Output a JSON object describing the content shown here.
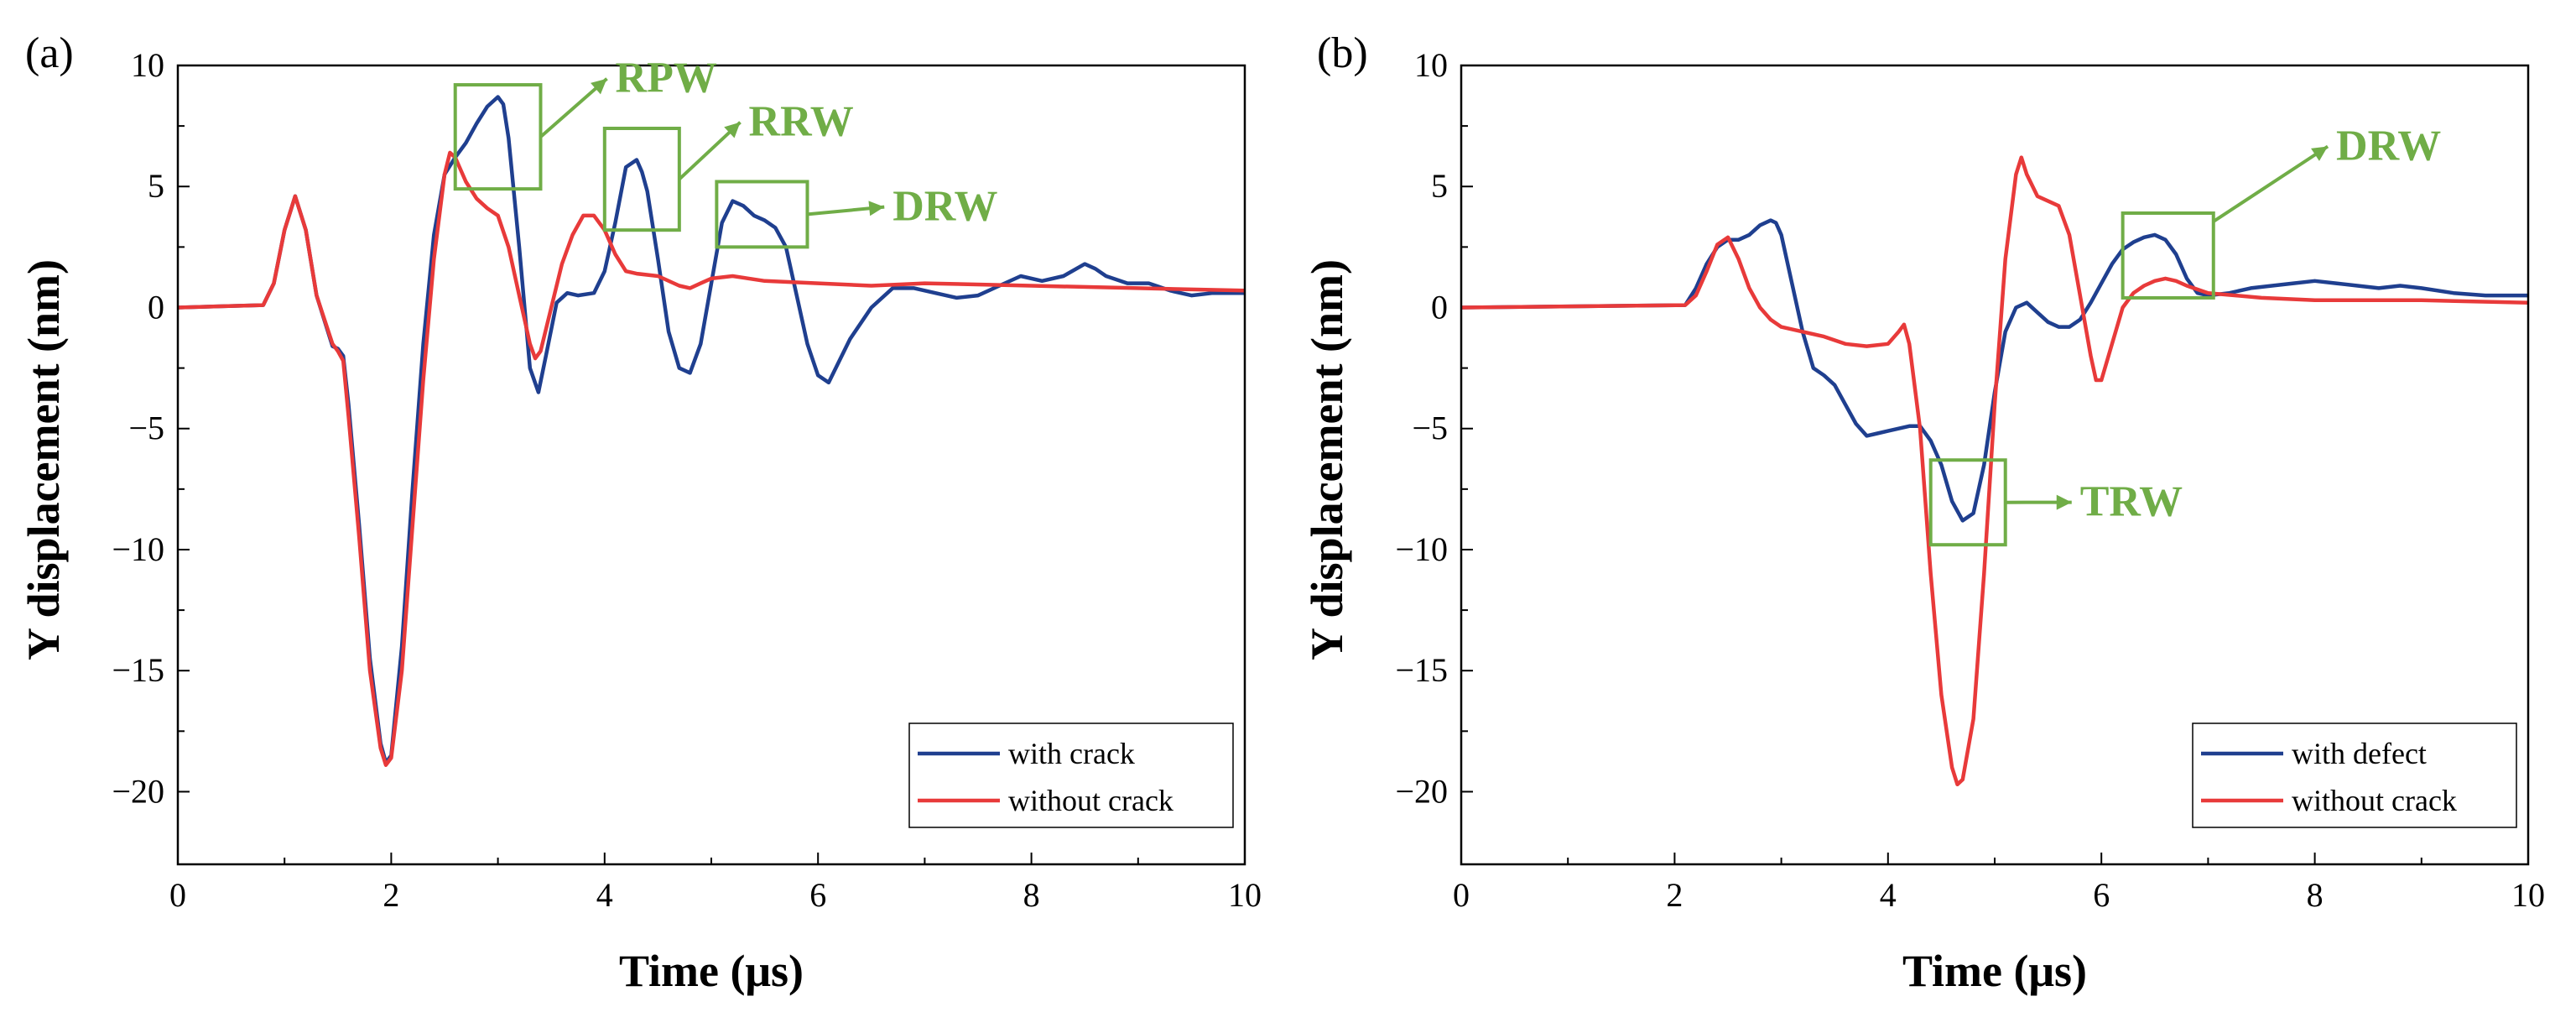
{
  "chart_data": [
    {
      "type": "line",
      "panel_label": "(a)",
      "xlabel": "Time (μs)",
      "ylabel": "Y displacement (nm)",
      "xlim": [
        0,
        10
      ],
      "ylim": [
        -23,
        10
      ],
      "xticks": [
        0,
        2,
        4,
        6,
        8,
        10
      ],
      "yticks": [
        10,
        5,
        0,
        -5,
        -10,
        -15,
        -20
      ],
      "legend_position": "bottom-right",
      "series": [
        {
          "name": "with crack",
          "color": "#1f3f8f",
          "x": [
            0,
            0.8,
            0.9,
            1.0,
            1.1,
            1.2,
            1.3,
            1.45,
            1.5,
            1.55,
            1.6,
            1.7,
            1.8,
            1.9,
            1.95,
            2.0,
            2.1,
            2.2,
            2.3,
            2.4,
            2.5,
            2.6,
            2.7,
            2.8,
            2.9,
            3.0,
            3.05,
            3.1,
            3.2,
            3.3,
            3.38,
            3.45,
            3.55,
            3.65,
            3.75,
            3.9,
            4.0,
            4.1,
            4.2,
            4.3,
            4.35,
            4.4,
            4.5,
            4.6,
            4.7,
            4.8,
            4.9,
            5.0,
            5.1,
            5.2,
            5.3,
            5.4,
            5.5,
            5.6,
            5.7,
            5.8,
            5.9,
            6.0,
            6.1,
            6.2,
            6.3,
            6.5,
            6.7,
            6.9,
            7.1,
            7.3,
            7.5,
            7.7,
            7.9,
            8.1,
            8.3,
            8.5,
            8.6,
            8.7,
            8.9,
            9.1,
            9.3,
            9.5,
            9.7,
            10.0
          ],
          "y": [
            0,
            0.1,
            1.0,
            3.2,
            4.6,
            3.2,
            0.5,
            -1.6,
            -1.7,
            -2.0,
            -4.0,
            -9.0,
            -14.5,
            -18.0,
            -18.8,
            -18.5,
            -14.0,
            -7.5,
            -1.5,
            3.0,
            5.5,
            6.2,
            6.8,
            7.6,
            8.3,
            8.7,
            8.4,
            7.0,
            2.5,
            -2.5,
            -3.5,
            -2.0,
            0.2,
            0.6,
            0.5,
            0.6,
            1.5,
            3.5,
            5.8,
            6.1,
            5.6,
            4.8,
            2.0,
            -1.0,
            -2.5,
            -2.7,
            -1.5,
            1.0,
            3.5,
            4.4,
            4.2,
            3.8,
            3.6,
            3.3,
            2.5,
            0.5,
            -1.5,
            -2.8,
            -3.1,
            -2.2,
            -1.3,
            0.0,
            0.8,
            0.8,
            0.6,
            0.4,
            0.5,
            0.9,
            1.3,
            1.1,
            1.3,
            1.8,
            1.6,
            1.3,
            1.0,
            1.0,
            0.7,
            0.5,
            0.6,
            0.6
          ]
        },
        {
          "name": "without crack",
          "color": "#e83a3a",
          "x": [
            0,
            0.8,
            0.9,
            1.0,
            1.1,
            1.2,
            1.3,
            1.45,
            1.5,
            1.55,
            1.6,
            1.7,
            1.8,
            1.9,
            1.95,
            2.0,
            2.1,
            2.2,
            2.3,
            2.4,
            2.5,
            2.55,
            2.6,
            2.7,
            2.8,
            2.9,
            3.0,
            3.1,
            3.2,
            3.3,
            3.35,
            3.4,
            3.5,
            3.6,
            3.7,
            3.8,
            3.9,
            4.0,
            4.1,
            4.2,
            4.3,
            4.5,
            4.7,
            4.8,
            4.9,
            5.0,
            5.2,
            5.5,
            6.0,
            6.5,
            7.0,
            8.0,
            9.0,
            10.0
          ],
          "y": [
            0,
            0.1,
            1.0,
            3.2,
            4.6,
            3.2,
            0.5,
            -1.5,
            -1.8,
            -2.2,
            -4.5,
            -9.5,
            -15.0,
            -18.2,
            -18.9,
            -18.6,
            -15.0,
            -9.0,
            -3.0,
            2.0,
            5.5,
            6.4,
            6.2,
            5.2,
            4.5,
            4.1,
            3.8,
            2.5,
            0.5,
            -1.5,
            -2.1,
            -1.8,
            0.0,
            1.8,
            3.0,
            3.8,
            3.8,
            3.2,
            2.2,
            1.5,
            1.4,
            1.3,
            0.9,
            0.8,
            1.0,
            1.2,
            1.3,
            1.1,
            1.0,
            0.9,
            1.0,
            0.9,
            0.8,
            0.7
          ]
        }
      ],
      "annotations": [
        {
          "label": "RPW",
          "box": [
            2.6,
            3.4,
            4.9,
            9.2
          ],
          "text_at": [
            4.1,
            8.9
          ]
        },
        {
          "label": "RRW",
          "box": [
            4.0,
            4.7,
            3.2,
            7.4
          ],
          "text_at": [
            5.35,
            7.1
          ]
        },
        {
          "label": "DRW",
          "box": [
            5.05,
            5.9,
            2.5,
            5.2
          ],
          "text_at": [
            6.7,
            3.6
          ]
        }
      ]
    },
    {
      "type": "line",
      "panel_label": "(b)",
      "xlabel": "Time (μs)",
      "ylabel": "Y displacement (nm)",
      "xlim": [
        0,
        10
      ],
      "ylim": [
        -23,
        10
      ],
      "xticks": [
        0,
        2,
        4,
        6,
        8,
        10
      ],
      "yticks": [
        10,
        5,
        0,
        -5,
        -10,
        -15,
        -20
      ],
      "legend_position": "bottom-right",
      "series": [
        {
          "name": "with defect",
          "color": "#1f3f8f",
          "x": [
            0,
            2.1,
            2.2,
            2.3,
            2.4,
            2.5,
            2.6,
            2.7,
            2.8,
            2.9,
            2.95,
            3.0,
            3.1,
            3.2,
            3.3,
            3.4,
            3.5,
            3.6,
            3.7,
            3.8,
            3.9,
            4.0,
            4.1,
            4.2,
            4.3,
            4.4,
            4.5,
            4.6,
            4.7,
            4.8,
            4.9,
            5.0,
            5.1,
            5.2,
            5.3,
            5.4,
            5.5,
            5.6,
            5.7,
            5.8,
            5.9,
            6.0,
            6.1,
            6.2,
            6.3,
            6.4,
            6.5,
            6.6,
            6.7,
            6.8,
            6.9,
            7.0,
            7.2,
            7.4,
            7.6,
            7.8,
            8.0,
            8.2,
            8.4,
            8.6,
            8.8,
            9.0,
            9.3,
            9.6,
            10.0
          ],
          "y": [
            0,
            0.1,
            0.8,
            1.8,
            2.5,
            2.8,
            2.8,
            3.0,
            3.4,
            3.6,
            3.5,
            3.0,
            1.0,
            -1.0,
            -2.5,
            -2.8,
            -3.2,
            -4.0,
            -4.8,
            -5.3,
            -5.2,
            -5.1,
            -5.0,
            -4.9,
            -4.9,
            -5.5,
            -6.5,
            -8.0,
            -8.8,
            -8.5,
            -6.5,
            -3.5,
            -1.0,
            0.0,
            0.2,
            -0.2,
            -0.6,
            -0.8,
            -0.8,
            -0.5,
            0.2,
            1.0,
            1.8,
            2.4,
            2.7,
            2.9,
            3.0,
            2.8,
            2.2,
            1.2,
            0.6,
            0.5,
            0.6,
            0.8,
            0.9,
            1.0,
            1.1,
            1.0,
            0.9,
            0.8,
            0.9,
            0.8,
            0.6,
            0.5,
            0.5
          ]
        },
        {
          "name": "without crack",
          "color": "#e83a3a",
          "x": [
            0,
            2.1,
            2.2,
            2.3,
            2.4,
            2.5,
            2.6,
            2.7,
            2.8,
            2.9,
            3.0,
            3.2,
            3.4,
            3.6,
            3.8,
            4.0,
            4.1,
            4.15,
            4.2,
            4.3,
            4.4,
            4.5,
            4.6,
            4.65,
            4.7,
            4.8,
            4.9,
            5.0,
            5.1,
            5.2,
            5.25,
            5.3,
            5.4,
            5.5,
            5.6,
            5.7,
            5.8,
            5.9,
            5.95,
            6.0,
            6.1,
            6.2,
            6.3,
            6.4,
            6.5,
            6.6,
            6.7,
            6.8,
            7.0,
            7.5,
            8.0,
            9.0,
            10.0
          ],
          "y": [
            0,
            0.1,
            0.5,
            1.5,
            2.6,
            2.9,
            2.0,
            0.8,
            0.0,
            -0.5,
            -0.8,
            -1.0,
            -1.2,
            -1.5,
            -1.6,
            -1.5,
            -1.0,
            -0.7,
            -1.5,
            -5.0,
            -11.0,
            -16.0,
            -19.0,
            -19.7,
            -19.5,
            -17.0,
            -11.0,
            -4.0,
            2.0,
            5.5,
            6.2,
            5.5,
            4.6,
            4.4,
            4.2,
            3.0,
            0.5,
            -2.0,
            -3.0,
            -3.0,
            -1.5,
            0.0,
            0.6,
            0.9,
            1.1,
            1.2,
            1.1,
            0.9,
            0.6,
            0.4,
            0.3,
            0.3,
            0.2
          ]
        }
      ],
      "annotations": [
        {
          "label": "DRW",
          "box": [
            6.2,
            7.05,
            0.4,
            3.9
          ],
          "text_at": [
            8.2,
            6.1
          ]
        },
        {
          "label": "TRW",
          "box": [
            4.4,
            5.1,
            -9.8,
            -6.3
          ],
          "text_at": [
            5.8,
            -8.6
          ]
        }
      ]
    }
  ],
  "annotation_color": "#70ad47"
}
